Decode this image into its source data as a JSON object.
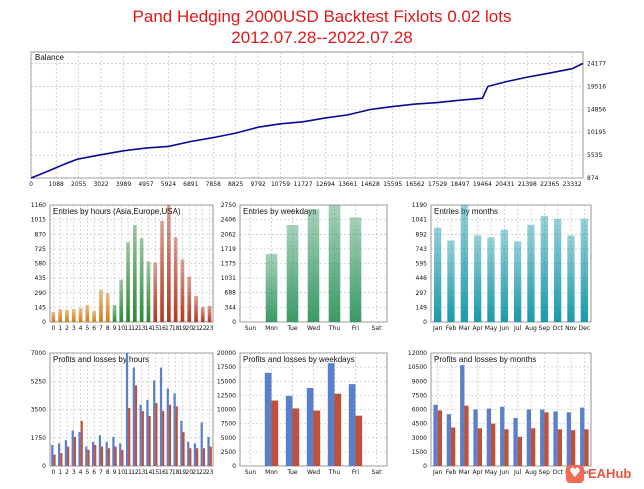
{
  "header": {
    "title_line1": "Pand Hedging 2000USD Backtest Fixlots 0.02 lots",
    "title_line2": "2012.07.28--2022.07.28"
  },
  "logo": {
    "text": "EAHub",
    "icon": "eahub-logo-icon"
  },
  "colors": {
    "balance_line": "#0a0a96",
    "grid": "#b8b8b8",
    "profit_bar": "#5b7fc8",
    "loss_bar": "#c0503a"
  },
  "chart_data": [
    {
      "id": "balance",
      "type": "line",
      "title": "Balance",
      "x_ticks": [
        "0",
        "1088",
        "2055",
        "3022",
        "3989",
        "4957",
        "5924",
        "6891",
        "7858",
        "8825",
        "9792",
        "10759",
        "11727",
        "12694",
        "13661",
        "14628",
        "15595",
        "16562",
        "17529",
        "18497",
        "19464",
        "20431",
        "21398",
        "22365",
        "23332"
      ],
      "y_ticks": [
        "874",
        "5535",
        "10195",
        "14856",
        "19516",
        "24177"
      ],
      "ylim": [
        874,
        26500
      ],
      "x": [
        0,
        500,
        1000,
        1500,
        2000,
        3000,
        3989,
        5000,
        5924,
        6891,
        7858,
        8825,
        9792,
        10759,
        11727,
        12694,
        13661,
        14628,
        15595,
        16562,
        17529,
        18497,
        19000,
        19464,
        19700,
        20431,
        21398,
        22365,
        23332,
        23800
      ],
      "y": [
        874,
        1800,
        2800,
        3800,
        4700,
        5600,
        6400,
        7000,
        7300,
        8300,
        9100,
        10000,
        11200,
        11900,
        12300,
        13100,
        13700,
        14800,
        15400,
        15900,
        16200,
        16700,
        16900,
        17100,
        19500,
        20400,
        21400,
        22200,
        23100,
        24177
      ]
    },
    {
      "id": "entries-hours",
      "type": "bar",
      "title": "Entries by hours (Asia,Europe,USA)",
      "categories": [
        "0",
        "1",
        "2",
        "3",
        "4",
        "5",
        "6",
        "7",
        "8",
        "9",
        "10",
        "11",
        "12",
        "13",
        "14",
        "15",
        "16",
        "17",
        "18",
        "19",
        "20",
        "21",
        "22",
        "23"
      ],
      "values": [
        100,
        130,
        120,
        130,
        140,
        170,
        110,
        320,
        290,
        170,
        420,
        790,
        960,
        830,
        600,
        590,
        1000,
        1160,
        840,
        620,
        450,
        260,
        150,
        160
      ],
      "y_ticks": [
        "0",
        "145",
        "290",
        "435",
        "580",
        "725",
        "870",
        "1015",
        "1160"
      ],
      "ylim": [
        0,
        1160
      ]
    },
    {
      "id": "entries-weekdays",
      "type": "bar",
      "title": "Entries by weekdays",
      "categories": [
        "Sun",
        "Mon",
        "Tue",
        "Wed",
        "Thu",
        "Fri",
        "Sat"
      ],
      "values": [
        0,
        1600,
        2280,
        2650,
        2750,
        2460,
        0
      ],
      "y_ticks": [
        "0",
        "344",
        "688",
        "1031",
        "1375",
        "1719",
        "2062",
        "2406",
        "2750"
      ],
      "ylim": [
        0,
        2750
      ]
    },
    {
      "id": "entries-months",
      "type": "bar",
      "title": "Entries by months",
      "categories": [
        "Jan",
        "Feb",
        "Mar",
        "Apr",
        "May",
        "Jun",
        "Jul",
        "Aug",
        "Sep",
        "Oct",
        "Nov",
        "Dec"
      ],
      "values": [
        960,
        830,
        1190,
        880,
        860,
        940,
        820,
        990,
        1080,
        1050,
        880,
        1050
      ],
      "y_ticks": [
        "0",
        "149",
        "297",
        "446",
        "595",
        "743",
        "892",
        "1041",
        "1190"
      ],
      "ylim": [
        0,
        1190
      ]
    },
    {
      "id": "pl-hours",
      "type": "bar",
      "title": "Profits and losses by hours",
      "categories": [
        "0",
        "1",
        "2",
        "3",
        "4",
        "5",
        "6",
        "7",
        "8",
        "9",
        "10",
        "11",
        "12",
        "13",
        "14",
        "15",
        "16",
        "17",
        "18",
        "19",
        "20",
        "21",
        "22",
        "23"
      ],
      "series": [
        {
          "values": [
            1300,
            1400,
            1600,
            2200,
            2100,
            1200,
            1500,
            1900,
            1500,
            1800,
            1400,
            7000,
            6100,
            3800,
            4100,
            5300,
            6100,
            4800,
            4500,
            2800,
            1500,
            1400,
            2700,
            1800
          ]
        },
        {
          "values": [
            700,
            800,
            1200,
            1800,
            2800,
            1000,
            1300,
            1200,
            1100,
            1200,
            1000,
            3600,
            5000,
            3400,
            3100,
            3900,
            3400,
            3800,
            3700,
            2100,
            1100,
            1100,
            1100,
            1200
          ]
        }
      ],
      "y_ticks": [
        "0",
        "1750",
        "3500",
        "5250",
        "7000"
      ],
      "ylim": [
        0,
        7000
      ]
    },
    {
      "id": "pl-weekdays",
      "type": "bar",
      "title": "Profits and losses by weekdays",
      "categories": [
        "Sun",
        "Mon",
        "Tue",
        "Wed",
        "Thu",
        "Fri",
        "Sat"
      ],
      "series": [
        {
          "values": [
            0,
            16500,
            12400,
            13800,
            18200,
            14500,
            0
          ]
        },
        {
          "values": [
            0,
            11600,
            10200,
            9800,
            12800,
            8900,
            0
          ]
        }
      ],
      "y_ticks": [
        "0",
        "2500",
        "5000",
        "7500",
        "10000",
        "12500",
        "15000",
        "17500",
        "20000"
      ],
      "ylim": [
        0,
        20000
      ]
    },
    {
      "id": "pl-months",
      "type": "bar",
      "title": "Profits and losses by months",
      "categories": [
        "Jan",
        "Feb",
        "Mar",
        "Apr",
        "May",
        "Jun",
        "Jul",
        "Aug",
        "Sep",
        "Oct",
        "Nov",
        "Dec"
      ],
      "series": [
        {
          "values": [
            6500,
            5500,
            10700,
            6000,
            6100,
            6300,
            5100,
            6000,
            6000,
            5800,
            5700,
            6200
          ]
        },
        {
          "values": [
            5900,
            4100,
            6400,
            4000,
            4500,
            3900,
            3100,
            4000,
            5700,
            3900,
            3800,
            3900
          ]
        }
      ],
      "y_ticks": [
        "0",
        "1500",
        "3000",
        "4500",
        "6000",
        "7500",
        "9000",
        "10500",
        "12000"
      ],
      "ylim": [
        0,
        12000
      ]
    }
  ]
}
